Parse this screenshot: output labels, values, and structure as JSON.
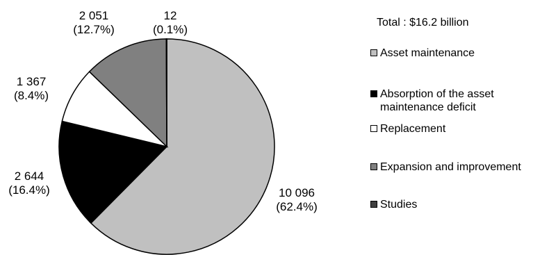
{
  "chart_data": {
    "type": "pie",
    "title": "",
    "total_label": "Total : $16.2 billion",
    "slices": [
      {
        "name": "Asset maintenance",
        "value": 10096,
        "value_label": "10 096",
        "pct_label": "(62.4%)",
        "color": "#c0c0c0"
      },
      {
        "name": "Absorption of the asset maintenance deficit",
        "value": 2644,
        "value_label": "2 644",
        "pct_label": "(16.4%)",
        "color": "#000000"
      },
      {
        "name": "Replacement",
        "value": 1367,
        "value_label": "1 367",
        "pct_label": "(8.4%)",
        "color": "#ffffff"
      },
      {
        "name": "Expansion and improvement",
        "value": 2051,
        "value_label": "2 051",
        "pct_label": "(12.7%)",
        "color": "#808080"
      },
      {
        "name": "Studies",
        "value": 12,
        "value_label": "12",
        "pct_label": "(0.1%)",
        "color": "#404040"
      }
    ],
    "legend_position": "right"
  }
}
